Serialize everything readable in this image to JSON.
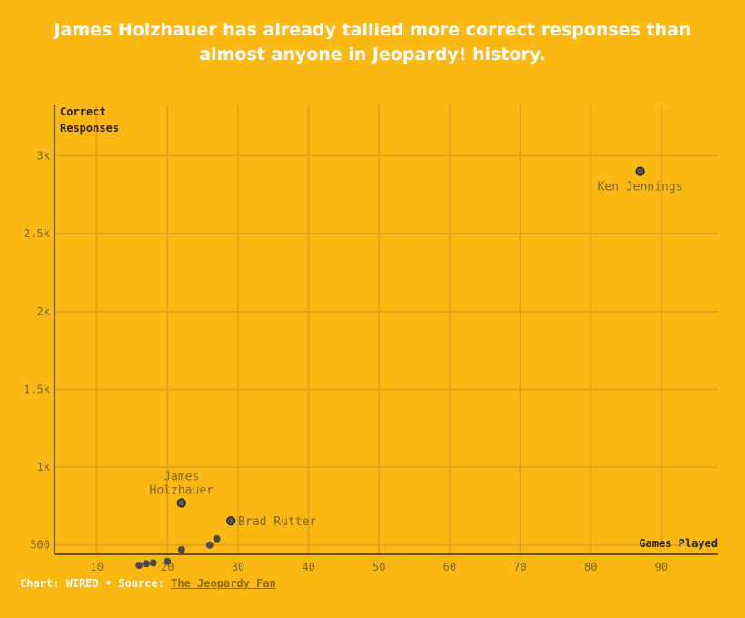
{
  "header": {
    "title": "James Holzhauer has already tallied more correct responses than almost anyone in Jeopardy! history."
  },
  "footer": {
    "prefix": "Chart: WIRED • Source: ",
    "source_link": "The Jeopardy Fan"
  },
  "colors": {
    "background": "#FCB813",
    "grid": "#D9A01A",
    "axis": "#3a2f08",
    "point": "#4a4a4a",
    "highlight_fill": "#555555",
    "title": "#ffffff"
  },
  "chart_data": {
    "type": "scatter",
    "xlabel": "Games Played",
    "ylabel_lines": [
      "Correct",
      "Responses"
    ],
    "xlim": [
      4,
      98
    ],
    "ylim": [
      440,
      3330
    ],
    "x_ticks": [
      10,
      20,
      30,
      40,
      50,
      60,
      70,
      80,
      90
    ],
    "y_ticks": [
      500,
      1000,
      1500,
      2000,
      2500,
      3000
    ],
    "y_tick_labels": [
      "500",
      "1k",
      "1.5k",
      "2k",
      "2.5k",
      "3k"
    ],
    "grid": true,
    "points": [
      {
        "x": 87,
        "y": 2900,
        "label": "Ken Jennings",
        "highlight": true,
        "label_pos": "below"
      },
      {
        "x": 22,
        "y": 770,
        "label": "James Holzhauer",
        "label_lines": [
          "James",
          "Holzhauer"
        ],
        "highlight": true,
        "label_pos": "above"
      },
      {
        "x": 29,
        "y": 655,
        "label": "Brad Rutter",
        "highlight": true,
        "label_pos": "right"
      },
      {
        "x": 16,
        "y": 370
      },
      {
        "x": 17,
        "y": 380
      },
      {
        "x": 18,
        "y": 385
      },
      {
        "x": 20,
        "y": 395
      },
      {
        "x": 22,
        "y": 470
      },
      {
        "x": 26,
        "y": 500
      },
      {
        "x": 27,
        "y": 540
      }
    ]
  }
}
